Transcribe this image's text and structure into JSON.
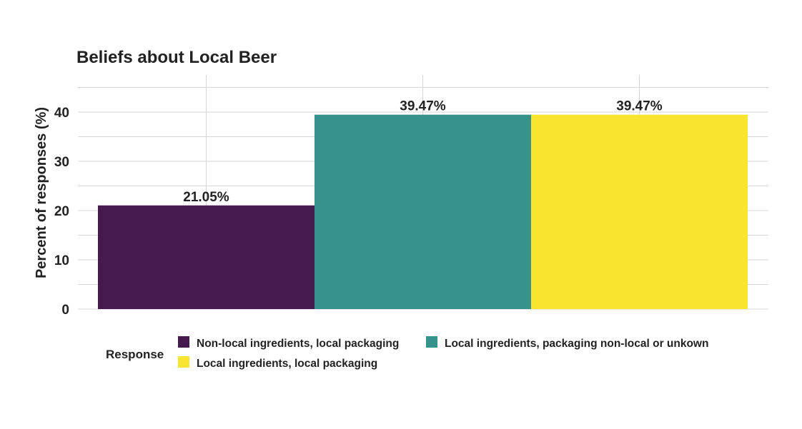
{
  "chart_data": {
    "type": "bar",
    "title": "Beliefs about Local Beer",
    "xlabel": "",
    "ylabel": "Percent of responses (%)",
    "ylim": [
      0,
      47
    ],
    "yticks": [
      0,
      10,
      20,
      30,
      40
    ],
    "grid": true,
    "categories": [
      "Non-local ingredients, local packaging",
      "Local ingredients, packaging non-local or unkown",
      "Local ingredients, local packaging"
    ],
    "values": [
      21.05,
      39.47,
      39.47
    ],
    "data_labels": [
      "21.05%",
      "39.47%",
      "39.47%"
    ],
    "colors": [
      "#451a4f",
      "#37928c",
      "#f9e52f"
    ],
    "legend": {
      "title": "Response",
      "placement": "bottom",
      "entries": [
        "Non-local ingredients, local packaging",
        "Local ingredients, packaging non-local or unkown",
        "Local ingredients, local packaging"
      ]
    }
  }
}
